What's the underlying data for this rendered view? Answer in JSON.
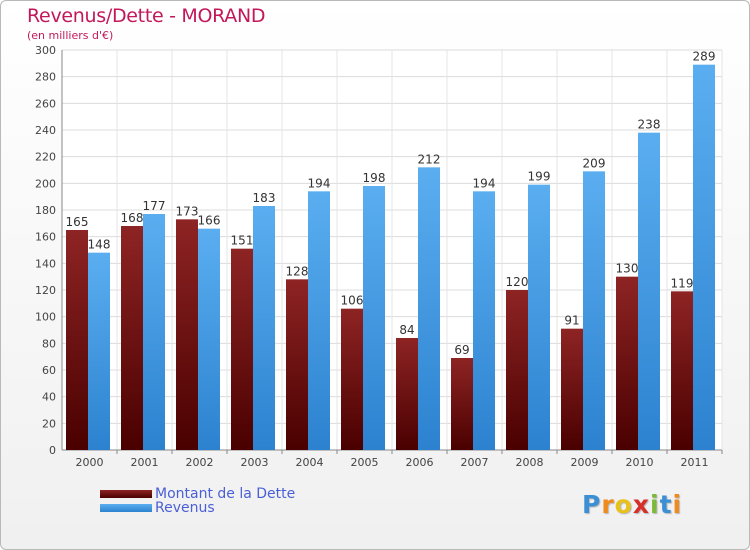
{
  "chart_data": {
    "type": "bar",
    "title": "Revenus/Dette - MORAND",
    "subtitle": "(en milliers d'€)",
    "categories": [
      "2000",
      "2001",
      "2002",
      "2003",
      "2004",
      "2005",
      "2006",
      "2007",
      "2008",
      "2009",
      "2010",
      "2011"
    ],
    "series": [
      {
        "name": "Montant de la Dette",
        "values": [
          165,
          168,
          173,
          151,
          128,
          106,
          84,
          69,
          120,
          91,
          130,
          119
        ],
        "color": "#7a1010"
      },
      {
        "name": "Revenus",
        "values": [
          148,
          177,
          166,
          183,
          194,
          198,
          212,
          194,
          199,
          209,
          238,
          289
        ],
        "color": "#4aa3e8"
      }
    ],
    "ylim": [
      0,
      300
    ],
    "yticks": [
      0,
      20,
      40,
      60,
      80,
      100,
      120,
      140,
      160,
      180,
      200,
      220,
      240,
      260,
      280,
      300
    ],
    "grid": true,
    "legend_position": "bottom-left"
  },
  "branding": {
    "logo_letters": [
      "P",
      "r",
      "o",
      "x",
      "i",
      "t",
      "i"
    ],
    "logo_colors": [
      "#3b8fd4",
      "#f08a1c",
      "#e8c21a",
      "#d6302b",
      "#7cb83a",
      "#3b8fd4",
      "#f08a1c"
    ]
  }
}
